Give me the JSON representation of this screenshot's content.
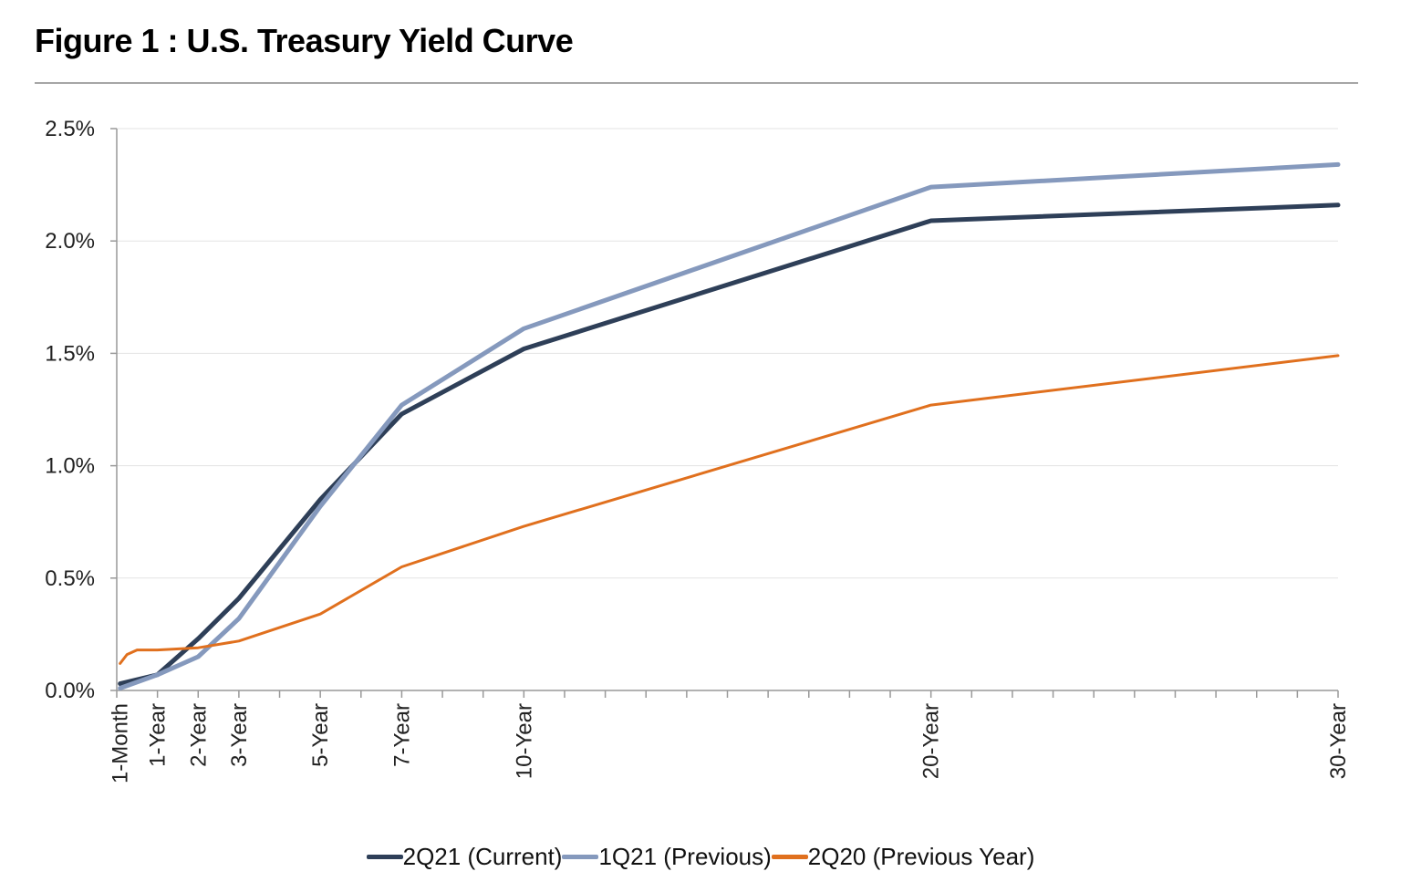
{
  "title": "Figure 1 : U.S. Treasury Yield Curve",
  "chart_data": {
    "type": "line",
    "title": "Figure 1 : U.S. Treasury Yield Curve",
    "xlabel": "",
    "ylabel": "",
    "x_unit": "years to maturity",
    "xlim": [
      0,
      30
    ],
    "ylim": [
      0,
      2.5
    ],
    "y_ticks": [
      "0.0%",
      "0.5%",
      "1.0%",
      "1.5%",
      "2.0%",
      "2.5%"
    ],
    "y_tick_values": [
      0,
      0.5,
      1.0,
      1.5,
      2.0,
      2.5
    ],
    "x_tick_labels": [
      "1-Month",
      "1-Year",
      "2-Year",
      "3-Year",
      "5-Year",
      "7-Year",
      "10-Year",
      "20-Year",
      "30-Year"
    ],
    "x_tick_values": [
      0.083,
      1,
      2,
      3,
      5,
      7,
      10,
      20,
      30
    ],
    "grid": "horizontal",
    "legend_position": "bottom",
    "series": [
      {
        "name": "2Q21 (Current)",
        "color": "#2e3f58",
        "x": [
          0.083,
          1,
          2,
          3,
          5,
          7,
          10,
          20,
          30
        ],
        "values": [
          0.03,
          0.07,
          0.23,
          0.41,
          0.85,
          1.23,
          1.52,
          2.09,
          2.16
        ]
      },
      {
        "name": "1Q21 (Previous)",
        "color": "#8599bd",
        "x": [
          0.083,
          1,
          2,
          3,
          5,
          7,
          10,
          20,
          30
        ],
        "values": [
          0.01,
          0.07,
          0.15,
          0.32,
          0.82,
          1.27,
          1.61,
          2.24,
          2.34
        ]
      },
      {
        "name": "2Q20 (Previous Year)",
        "color": "#e0701e",
        "x": [
          0.083,
          0.25,
          0.5,
          1,
          2,
          3,
          5,
          7,
          10,
          20,
          30
        ],
        "values": [
          0.12,
          0.16,
          0.18,
          0.18,
          0.19,
          0.22,
          0.34,
          0.55,
          0.73,
          1.27,
          1.49
        ]
      }
    ]
  }
}
